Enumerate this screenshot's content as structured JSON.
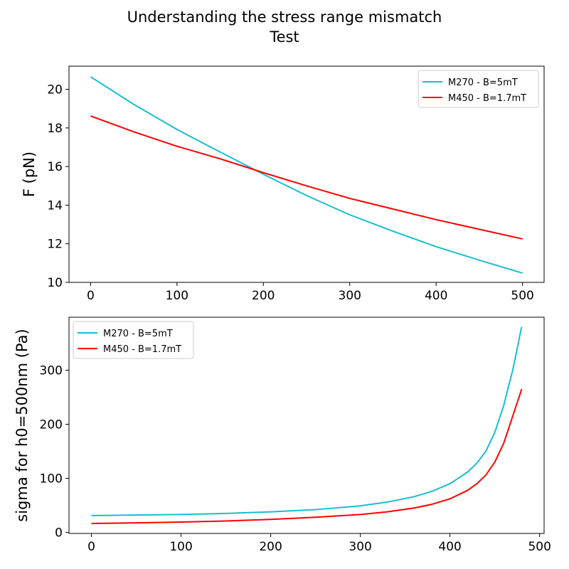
{
  "figure": {
    "title_line1": "Understanding the stress range mismatch",
    "title_line2": "Test"
  },
  "chart_data": [
    {
      "type": "line",
      "title": "",
      "xlabel": "",
      "ylabel": "F (pN)",
      "xlim": [
        -25,
        525
      ],
      "ylim": [
        10,
        21.2
      ],
      "xticks": [
        0,
        100,
        200,
        300,
        400,
        500
      ],
      "yticks": [
        10,
        12,
        14,
        16,
        18,
        20
      ],
      "legend_position": "top-right",
      "grid": false,
      "series": [
        {
          "name": "M270 - B=5mT",
          "color": "#17becf",
          "x": [
            0,
            50,
            100,
            150,
            185,
            200,
            250,
            300,
            350,
            400,
            450,
            500
          ],
          "y": [
            20.65,
            19.22,
            17.92,
            16.75,
            15.95,
            15.6,
            14.5,
            13.5,
            12.65,
            11.85,
            11.15,
            10.48
          ]
        },
        {
          "name": "M450 - B=1.7mT",
          "color": "#ff0000",
          "x": [
            0,
            50,
            100,
            150,
            185,
            200,
            250,
            300,
            350,
            400,
            450,
            500
          ],
          "y": [
            18.62,
            17.8,
            17.05,
            16.4,
            15.9,
            15.68,
            15.0,
            14.35,
            13.8,
            13.25,
            12.75,
            12.25
          ]
        }
      ]
    },
    {
      "type": "line",
      "title": "",
      "xlabel": "",
      "ylabel": "sigma for h0=500nm (Pa)",
      "xlim": [
        -25,
        505
      ],
      "ylim": [
        -2,
        398
      ],
      "xticks": [
        0,
        100,
        200,
        300,
        400,
        500
      ],
      "yticks": [
        0,
        100,
        200,
        300
      ],
      "legend_position": "top-left",
      "grid": false,
      "series": [
        {
          "name": "M270 - B=5mT",
          "color": "#17becf",
          "x": [
            0,
            50,
            100,
            150,
            200,
            250,
            300,
            330,
            360,
            380,
            400,
            420,
            430,
            440,
            450,
            460,
            465,
            470,
            475,
            478,
            480
          ],
          "y": [
            31,
            32,
            33,
            35,
            38,
            42,
            49,
            56,
            66,
            76,
            90,
            112,
            128,
            150,
            185,
            235,
            268,
            300,
            340,
            365,
            380
          ]
        },
        {
          "name": "M450 - B=1.7mT",
          "color": "#ff0000",
          "x": [
            0,
            50,
            100,
            150,
            200,
            250,
            300,
            330,
            360,
            380,
            400,
            420,
            430,
            440,
            450,
            460,
            465,
            470,
            475,
            478,
            480
          ],
          "y": [
            16.5,
            17.5,
            19,
            21,
            24,
            28,
            33,
            38,
            45,
            52,
            62,
            78,
            90,
            106,
            130,
            165,
            190,
            215,
            240,
            255,
            265
          ]
        }
      ]
    }
  ]
}
